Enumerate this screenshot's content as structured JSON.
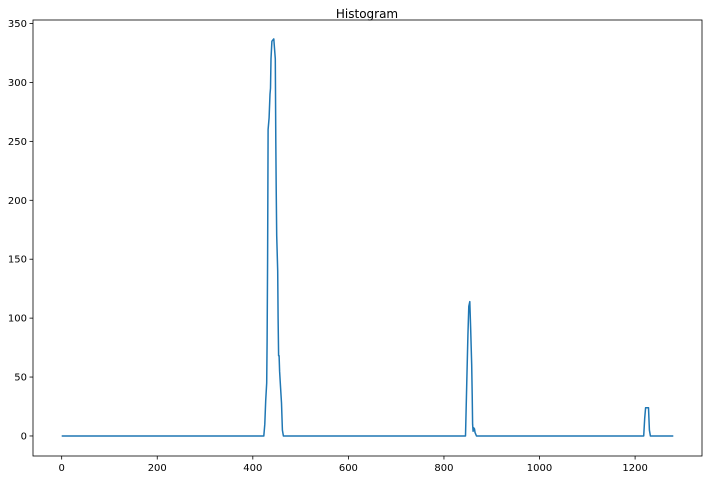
{
  "chart_data": {
    "type": "line",
    "title": "Histogram",
    "xlabel": "",
    "ylabel": "",
    "xlim": [
      -60,
      1340
    ],
    "ylim": [
      -17,
      353
    ],
    "xticks": [
      0,
      200,
      400,
      600,
      800,
      1000,
      1200
    ],
    "yticks": [
      0,
      50,
      100,
      150,
      200,
      250,
      300,
      350
    ],
    "grid": false,
    "colors": {
      "line": "#1f77b4",
      "axis": "#000000",
      "background": "#ffffff"
    },
    "series": [
      {
        "x": [
          0,
          420,
          423,
          425,
          427,
          429,
          430,
          431,
          432,
          434,
          436,
          437,
          438,
          440,
          442,
          444,
          447,
          448,
          449,
          450,
          452,
          453,
          454,
          455,
          456,
          458,
          460,
          462,
          464,
          466,
          467,
          468,
          469,
          470,
          845,
          848,
          850,
          852,
          854,
          856,
          858,
          859,
          860,
          861,
          862,
          864,
          865,
          868,
          870,
          872,
          1216,
          1218,
          1220,
          1222,
          1224,
          1226,
          1228,
          1230,
          1232,
          1234,
          1280
        ],
        "values": [
          0,
          0,
          0,
          10,
          30,
          45,
          80,
          150,
          260,
          270,
          290,
          295,
          320,
          335,
          336,
          337,
          320,
          250,
          210,
          170,
          140,
          100,
          68,
          68,
          55,
          42,
          28,
          5,
          0,
          0,
          0,
          0,
          0,
          0,
          0,
          50,
          85,
          110,
          114,
          90,
          60,
          35,
          10,
          4,
          7,
          6,
          3,
          0,
          0,
          0,
          0,
          0,
          15,
          24,
          24,
          24,
          24,
          5,
          0,
          0,
          0
        ]
      }
    ]
  }
}
